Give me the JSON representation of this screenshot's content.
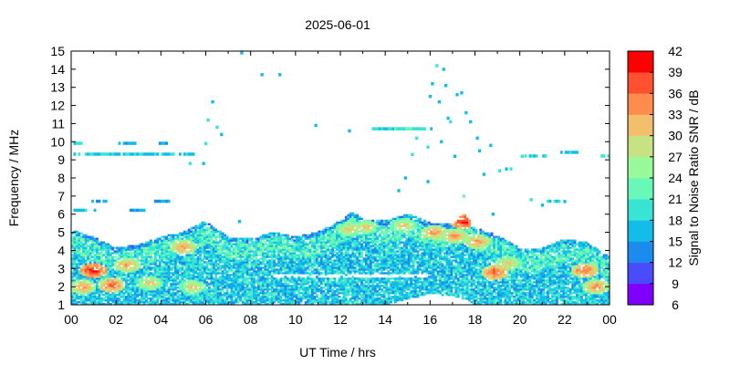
{
  "chart_data": {
    "type": "heatmap",
    "title": "2025-06-01",
    "xlabel": "UT Time / hrs",
    "ylabel": "Frequency / MHz",
    "xlim": [
      0,
      24
    ],
    "ylim": [
      1,
      15
    ],
    "x_ticks": [
      "00",
      "02",
      "04",
      "06",
      "08",
      "10",
      "12",
      "14",
      "16",
      "18",
      "20",
      "22",
      "00"
    ],
    "y_ticks": [
      "1",
      "2",
      "3",
      "4",
      "5",
      "6",
      "7",
      "8",
      "9",
      "10",
      "11",
      "12",
      "13",
      "14",
      "15"
    ],
    "colorbar": {
      "label": "Signal to Noise Ratio SNR / dB",
      "range": [
        6,
        42
      ],
      "ticks": [
        "6",
        "9",
        "12",
        "15",
        "18",
        "21",
        "24",
        "27",
        "30",
        "33",
        "36",
        "39",
        "42"
      ],
      "colors": [
        "#7f00ff",
        "#4a4cfb",
        "#1a8cf0",
        "#12bde8",
        "#38e4d4",
        "#68f8b8",
        "#98fa98",
        "#c6e282",
        "#f2c06c",
        "#ff8c4c",
        "#ff5030",
        "#ff0000"
      ]
    },
    "envelope": {
      "hours": [
        0,
        1,
        2,
        3,
        4,
        5,
        5.5,
        6,
        7,
        8,
        9,
        10,
        11,
        12,
        12.5,
        13,
        14,
        15,
        16,
        17,
        17.5,
        18,
        19,
        20,
        21,
        22,
        23,
        24
      ],
      "upper_mhz": [
        5.1,
        4.7,
        4.1,
        4.3,
        4.7,
        5.0,
        5.3,
        5.6,
        4.7,
        4.6,
        5.0,
        4.7,
        5.0,
        5.6,
        6.1,
        5.7,
        5.6,
        6.0,
        5.5,
        5.4,
        6.0,
        5.2,
        4.8,
        4.1,
        4.1,
        4.6,
        4.4,
        3.6
      ],
      "lower_mhz": [
        1,
        1,
        1,
        1,
        1,
        1,
        1,
        1,
        1,
        1,
        1,
        1,
        1,
        1,
        1,
        1,
        1,
        1.3,
        1.6,
        1.5,
        1.3,
        1,
        1,
        1,
        1,
        1,
        1,
        1
      ]
    },
    "hot_spots": [
      {
        "hour": 0.5,
        "mhz": 2.0,
        "snr": 33
      },
      {
        "hour": 1.0,
        "mhz": 2.9,
        "snr": 39
      },
      {
        "hour": 1.8,
        "mhz": 2.1,
        "snr": 36
      },
      {
        "hour": 2.5,
        "mhz": 3.2,
        "snr": 33
      },
      {
        "hour": 3.5,
        "mhz": 2.2,
        "snr": 30
      },
      {
        "hour": 5.0,
        "mhz": 4.2,
        "snr": 33
      },
      {
        "hour": 5.4,
        "mhz": 2.0,
        "snr": 30
      },
      {
        "hour": 12.4,
        "mhz": 5.2,
        "snr": 30
      },
      {
        "hour": 13.1,
        "mhz": 5.3,
        "snr": 30
      },
      {
        "hour": 14.8,
        "mhz": 5.4,
        "snr": 30
      },
      {
        "hour": 16.2,
        "mhz": 5.0,
        "snr": 33
      },
      {
        "hour": 17.1,
        "mhz": 4.8,
        "snr": 33
      },
      {
        "hour": 17.5,
        "mhz": 5.6,
        "snr": 39
      },
      {
        "hour": 18.1,
        "mhz": 4.5,
        "snr": 33
      },
      {
        "hour": 18.9,
        "mhz": 2.8,
        "snr": 36
      },
      {
        "hour": 19.5,
        "mhz": 3.3,
        "snr": 30
      },
      {
        "hour": 22.9,
        "mhz": 2.9,
        "snr": 36
      },
      {
        "hour": 23.4,
        "mhz": 2.0,
        "snr": 33
      }
    ],
    "sporadic_traces": [
      {
        "hour_start": 0.1,
        "hour_end": 0.5,
        "mhz": 9.9,
        "snr": 18
      },
      {
        "hour_start": 0.0,
        "hour_end": 2.4,
        "mhz": 9.3,
        "snr": 18
      },
      {
        "hour_start": 2.4,
        "hour_end": 5.4,
        "mhz": 9.3,
        "snr": 17
      },
      {
        "hour_start": 2.1,
        "hour_end": 3.0,
        "mhz": 9.9,
        "snr": 16
      },
      {
        "hour_start": 3.9,
        "hour_end": 4.2,
        "mhz": 9.9,
        "snr": 16
      },
      {
        "hour_start": 0.8,
        "hour_end": 1.6,
        "mhz": 6.7,
        "snr": 16
      },
      {
        "hour_start": 0.0,
        "hour_end": 1.0,
        "mhz": 6.2,
        "snr": 17
      },
      {
        "hour_start": 2.6,
        "hour_end": 3.3,
        "mhz": 6.2,
        "snr": 15
      },
      {
        "hour_start": 3.5,
        "hour_end": 4.3,
        "mhz": 6.7,
        "snr": 15
      },
      {
        "hour_start": 13.3,
        "hour_end": 15.4,
        "mhz": 10.7,
        "snr": 17
      },
      {
        "hour_start": 14.1,
        "hour_end": 15.2,
        "mhz": 10.7,
        "snr": 21
      },
      {
        "hour_start": 15.4,
        "hour_end": 16.0,
        "mhz": 10.7,
        "snr": 19
      },
      {
        "hour_start": 20.2,
        "hour_end": 21.2,
        "mhz": 9.2,
        "snr": 18
      },
      {
        "hour_start": 21.8,
        "hour_end": 22.6,
        "mhz": 9.4,
        "snr": 17
      },
      {
        "hour_start": 23.6,
        "hour_end": 24.0,
        "mhz": 9.2,
        "snr": 20
      },
      {
        "hour_start": 21.2,
        "hour_end": 21.8,
        "mhz": 6.7,
        "snr": 17
      }
    ],
    "sporadic_points": [
      {
        "hour": 5.3,
        "mhz": 8.8,
        "snr": 19
      },
      {
        "hour": 5.9,
        "mhz": 8.8,
        "snr": 16
      },
      {
        "hour": 6.0,
        "mhz": 9.9,
        "snr": 20
      },
      {
        "hour": 6.1,
        "mhz": 11.2,
        "snr": 18
      },
      {
        "hour": 6.3,
        "mhz": 12.2,
        "snr": 16
      },
      {
        "hour": 6.5,
        "mhz": 10.8,
        "snr": 18
      },
      {
        "hour": 6.7,
        "mhz": 10.4,
        "snr": 16
      },
      {
        "hour": 7.6,
        "mhz": 14.9,
        "snr": 15
      },
      {
        "hour": 8.5,
        "mhz": 13.7,
        "snr": 15
      },
      {
        "hour": 9.3,
        "mhz": 13.7,
        "snr": 15
      },
      {
        "hour": 7.5,
        "mhz": 5.6,
        "snr": 16
      },
      {
        "hour": 10.9,
        "mhz": 10.9,
        "snr": 16
      },
      {
        "hour": 12.4,
        "mhz": 10.6,
        "snr": 16
      },
      {
        "hour": 14.6,
        "mhz": 7.3,
        "snr": 17
      },
      {
        "hour": 14.9,
        "mhz": 8.0,
        "snr": 15
      },
      {
        "hour": 15.2,
        "mhz": 9.3,
        "snr": 18
      },
      {
        "hour": 15.4,
        "mhz": 10.2,
        "snr": 19
      },
      {
        "hour": 15.9,
        "mhz": 9.7,
        "snr": 18
      },
      {
        "hour": 16.0,
        "mhz": 12.5,
        "snr": 16
      },
      {
        "hour": 16.1,
        "mhz": 13.2,
        "snr": 15
      },
      {
        "hour": 16.3,
        "mhz": 14.2,
        "snr": 18
      },
      {
        "hour": 16.6,
        "mhz": 14.0,
        "snr": 16
      },
      {
        "hour": 16.7,
        "mhz": 13.1,
        "snr": 15
      },
      {
        "hour": 16.4,
        "mhz": 12.2,
        "snr": 15
      },
      {
        "hour": 16.8,
        "mhz": 11.3,
        "snr": 16
      },
      {
        "hour": 16.9,
        "mhz": 11.1,
        "snr": 19
      },
      {
        "hour": 17.2,
        "mhz": 12.6,
        "snr": 15
      },
      {
        "hour": 17.4,
        "mhz": 12.7,
        "snr": 15
      },
      {
        "hour": 17.6,
        "mhz": 11.6,
        "snr": 16
      },
      {
        "hour": 17.5,
        "mhz": 7.0,
        "snr": 21
      },
      {
        "hour": 17.8,
        "mhz": 11.1,
        "snr": 15
      },
      {
        "hour": 18.1,
        "mhz": 10.2,
        "snr": 16
      },
      {
        "hour": 18.2,
        "mhz": 9.5,
        "snr": 15
      },
      {
        "hour": 18.4,
        "mhz": 8.2,
        "snr": 16
      },
      {
        "hour": 18.7,
        "mhz": 9.8,
        "snr": 15
      },
      {
        "hour": 19.1,
        "mhz": 8.4,
        "snr": 19
      },
      {
        "hour": 19.4,
        "mhz": 8.5,
        "snr": 15
      },
      {
        "hour": 19.6,
        "mhz": 8.5,
        "snr": 18
      },
      {
        "hour": 20.5,
        "mhz": 6.8,
        "snr": 20
      },
      {
        "hour": 20.1,
        "mhz": 9.2,
        "snr": 18
      },
      {
        "hour": 22.0,
        "mhz": 6.7,
        "snr": 15
      },
      {
        "hour": 18.8,
        "mhz": 6.0,
        "snr": 15
      },
      {
        "hour": 15.9,
        "mhz": 7.8,
        "snr": 15
      },
      {
        "hour": 17.1,
        "mhz": 9.2,
        "snr": 16
      },
      {
        "hour": 21.0,
        "mhz": 6.5,
        "snr": 16
      },
      {
        "hour": 16.5,
        "mhz": 10.0,
        "snr": 15
      }
    ],
    "grid": false,
    "legend": "colorbar on right"
  }
}
